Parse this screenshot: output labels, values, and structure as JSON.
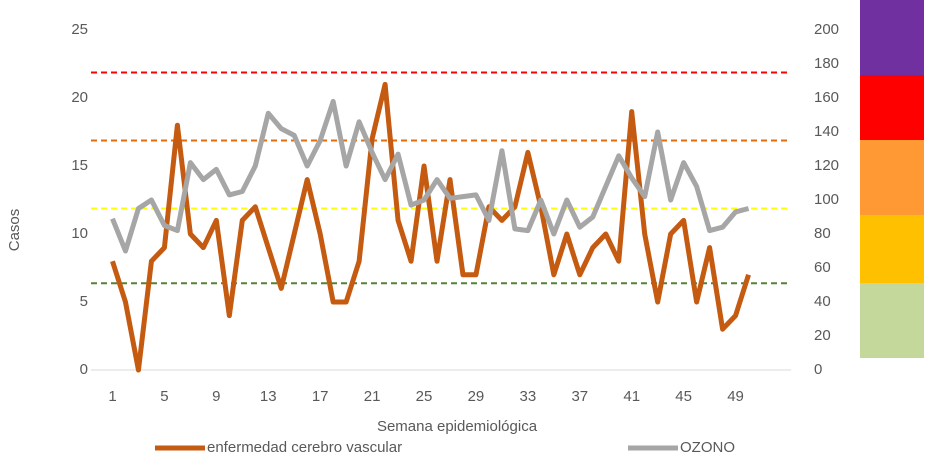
{
  "chart_data": {
    "type": "line",
    "x_label": "Semana epidemiológica",
    "y_label": "Casos",
    "categories": [
      1,
      null,
      null,
      null,
      5,
      null,
      null,
      null,
      9,
      null,
      null,
      null,
      13,
      null,
      null,
      null,
      17,
      null,
      null,
      null,
      21,
      null,
      null,
      null,
      25,
      null,
      null,
      null,
      29,
      null,
      null,
      null,
      33,
      null,
      null,
      null,
      37,
      null,
      null,
      null,
      41,
      null,
      null,
      null,
      45,
      null,
      null,
      null,
      49,
      null,
      null,
      null
    ],
    "series": [
      {
        "name": "enfermedad cerebro vascular",
        "color": "#c55a11",
        "values": [
          8,
          5,
          0,
          8,
          9,
          18,
          10,
          9,
          11,
          4,
          11,
          12,
          9,
          6,
          10,
          14,
          10,
          5,
          5,
          8,
          17,
          21,
          11,
          8,
          15,
          8,
          14,
          7,
          7,
          12,
          11,
          12,
          16,
          12,
          7,
          10,
          7,
          9,
          10,
          8,
          19,
          10,
          5,
          10,
          11,
          5,
          9,
          3,
          4,
          7,
          null,
          null
        ]
      },
      {
        "name": "OZONO",
        "color": "#a6a6a6",
        "axis": "y2",
        "values": [
          89,
          70,
          95,
          100,
          85,
          82,
          122,
          112,
          118,
          103,
          105,
          120,
          151,
          142,
          138,
          120,
          135,
          158,
          120,
          146,
          128,
          112,
          127,
          97,
          100,
          112,
          101,
          102,
          103,
          88,
          129,
          83,
          82,
          100,
          80,
          100,
          84,
          90,
          108,
          126,
          113,
          102,
          140,
          100,
          122,
          108,
          82,
          84,
          93,
          95,
          null,
          null
        ]
      }
    ],
    "ylim": [
      0,
      25
    ],
    "yticks": [
      0,
      5,
      10,
      15,
      20,
      25
    ],
    "y2lim": [
      0,
      200
    ],
    "y2ticks": [
      0,
      20,
      40,
      60,
      80,
      100,
      120,
      140,
      160,
      180,
      200
    ],
    "reference_lines": [
      {
        "value": 175,
        "color": "#ff0000",
        "axis": "y2"
      },
      {
        "value": 135,
        "color": "#e46c0a",
        "axis": "y2"
      },
      {
        "value": 95,
        "color": "#ffff00",
        "axis": "y2"
      },
      {
        "value": 51,
        "color": "#548235",
        "axis": "y2"
      }
    ]
  }
}
